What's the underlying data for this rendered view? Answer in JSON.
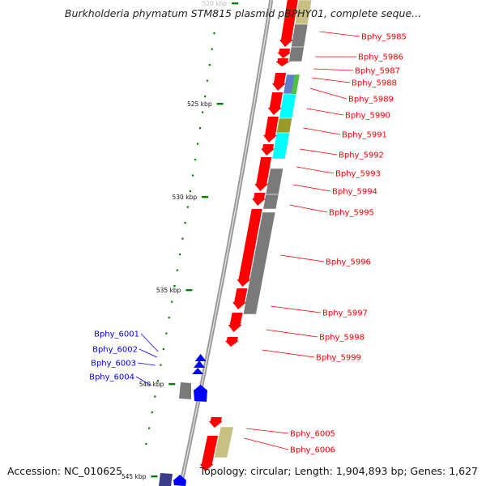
{
  "title": "Burkholderia phymatum STM815 plasmid pBPHY01, complete seque...",
  "accession_text": "Accession: NC_010625",
  "summary_text": "Topology: circular; Length: 1,904,893 bp; Genes: 1,627",
  "colors": {
    "forward_cds": "#ff0000",
    "reverse_cds": "#0000ff",
    "cog_gray": "#7a7a7a",
    "cog_cyan": "#00ffff",
    "cog_olive": "#9a9a2a",
    "cog_khaki": "#c8bf82",
    "cog_green": "#4fbf3f",
    "cog_steel": "#5f7fc8",
    "cog_navy": "#3b3b8c",
    "tick_green": "#008000",
    "backbone": "#999999"
  },
  "scale_labels": [
    "520 kbp",
    "525 kbp",
    "530 kbp",
    "535 kbp",
    "540 kbp",
    "545 kbp"
  ],
  "forward_genes": [
    "Bphy_5985",
    "Bphy_5986",
    "Bphy_5987",
    "Bphy_5988",
    "Bphy_5989",
    "Bphy_5990",
    "Bphy_5991",
    "Bphy_5992",
    "Bphy_5993",
    "Bphy_5994",
    "Bphy_5995",
    "Bphy_5996",
    "Bphy_5997",
    "Bphy_5998",
    "Bphy_5999",
    "Bphy_6005",
    "Bphy_6006"
  ],
  "reverse_genes": [
    "Bphy_6001",
    "Bphy_6002",
    "Bphy_6003",
    "Bphy_6004"
  ]
}
